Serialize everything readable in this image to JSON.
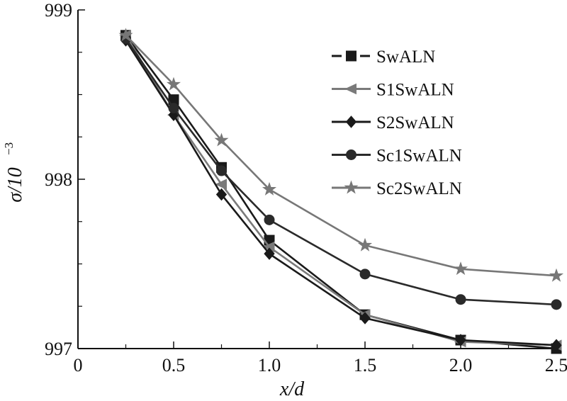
{
  "chart_data": {
    "type": "line",
    "title": "",
    "xlabel": "x/d",
    "ylabel_main": "σ/10",
    "ylabel_exp": "−3",
    "xlim": [
      0,
      2.5
    ],
    "ylim": [
      997,
      999
    ],
    "x_ticks": [
      0,
      0.5,
      1.0,
      1.5,
      2.0,
      2.5
    ],
    "x_tick_labels": [
      "0",
      "0.5",
      "1.0",
      "1.5",
      "2.0",
      "2.5"
    ],
    "y_ticks": [
      997,
      998,
      999
    ],
    "y_tick_labels": [
      "997",
      "998",
      "999"
    ],
    "grid": false,
    "legend_position": "top-right",
    "x": [
      0.25,
      0.5,
      0.75,
      1.0,
      1.5,
      2.0,
      2.5
    ],
    "series": [
      {
        "name": "SwALN",
        "color": "#1a1a1a",
        "marker": "square",
        "dashed": true,
        "values": [
          998.85,
          998.47,
          998.07,
          997.64,
          997.2,
          997.05,
          997.0
        ]
      },
      {
        "name": "S1SwALN",
        "color": "#7a7a7a",
        "marker": "triangle",
        "dashed": false,
        "values": [
          998.85,
          998.38,
          997.97,
          997.6,
          997.2,
          997.04,
          997.02
        ]
      },
      {
        "name": "S2SwALN",
        "color": "#1a1a1a",
        "marker": "diamond",
        "dashed": false,
        "values": [
          998.82,
          998.38,
          997.91,
          997.56,
          997.18,
          997.05,
          997.02
        ]
      },
      {
        "name": "Sc1SwALN",
        "color": "#2a2a2a",
        "marker": "circle",
        "dashed": false,
        "values": [
          998.83,
          998.42,
          998.05,
          997.76,
          997.44,
          997.29,
          997.26
        ]
      },
      {
        "name": "Sc2SwALN",
        "color": "#777777",
        "marker": "star",
        "dashed": false,
        "values": [
          998.85,
          998.56,
          998.23,
          997.94,
          997.61,
          997.47,
          997.43
        ]
      }
    ]
  }
}
